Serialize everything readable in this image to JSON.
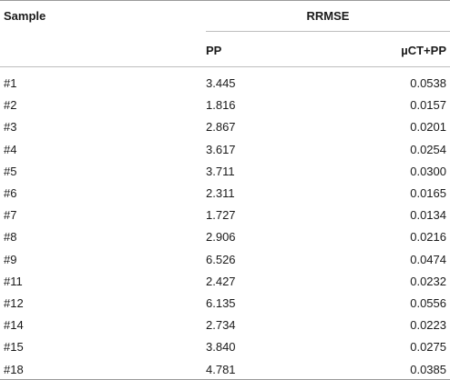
{
  "table": {
    "header": {
      "sample": "Sample",
      "group": "RRMSE",
      "col_pp": "PP",
      "col_ct": "µCT+PP"
    },
    "rows": [
      {
        "sample": "#1",
        "pp": "3.445",
        "ct": "0.0538"
      },
      {
        "sample": "#2",
        "pp": "1.816",
        "ct": "0.0157"
      },
      {
        "sample": "#3",
        "pp": "2.867",
        "ct": "0.0201"
      },
      {
        "sample": "#4",
        "pp": "3.617",
        "ct": "0.0254"
      },
      {
        "sample": "#5",
        "pp": "3.711",
        "ct": "0.0300"
      },
      {
        "sample": "#6",
        "pp": "2.311",
        "ct": "0.0165"
      },
      {
        "sample": "#7",
        "pp": "1.727",
        "ct": "0.0134"
      },
      {
        "sample": "#8",
        "pp": "2.906",
        "ct": "0.0216"
      },
      {
        "sample": "#9",
        "pp": "6.526",
        "ct": "0.0474"
      },
      {
        "sample": "#11",
        "pp": "2.427",
        "ct": "0.0232"
      },
      {
        "sample": "#12",
        "pp": "6.135",
        "ct": "0.0556"
      },
      {
        "sample": "#14",
        "pp": "2.734",
        "ct": "0.0223"
      },
      {
        "sample": "#15",
        "pp": "3.840",
        "ct": "0.0275"
      },
      {
        "sample": "#18",
        "pp": "4.781",
        "ct": "0.0385"
      }
    ]
  }
}
